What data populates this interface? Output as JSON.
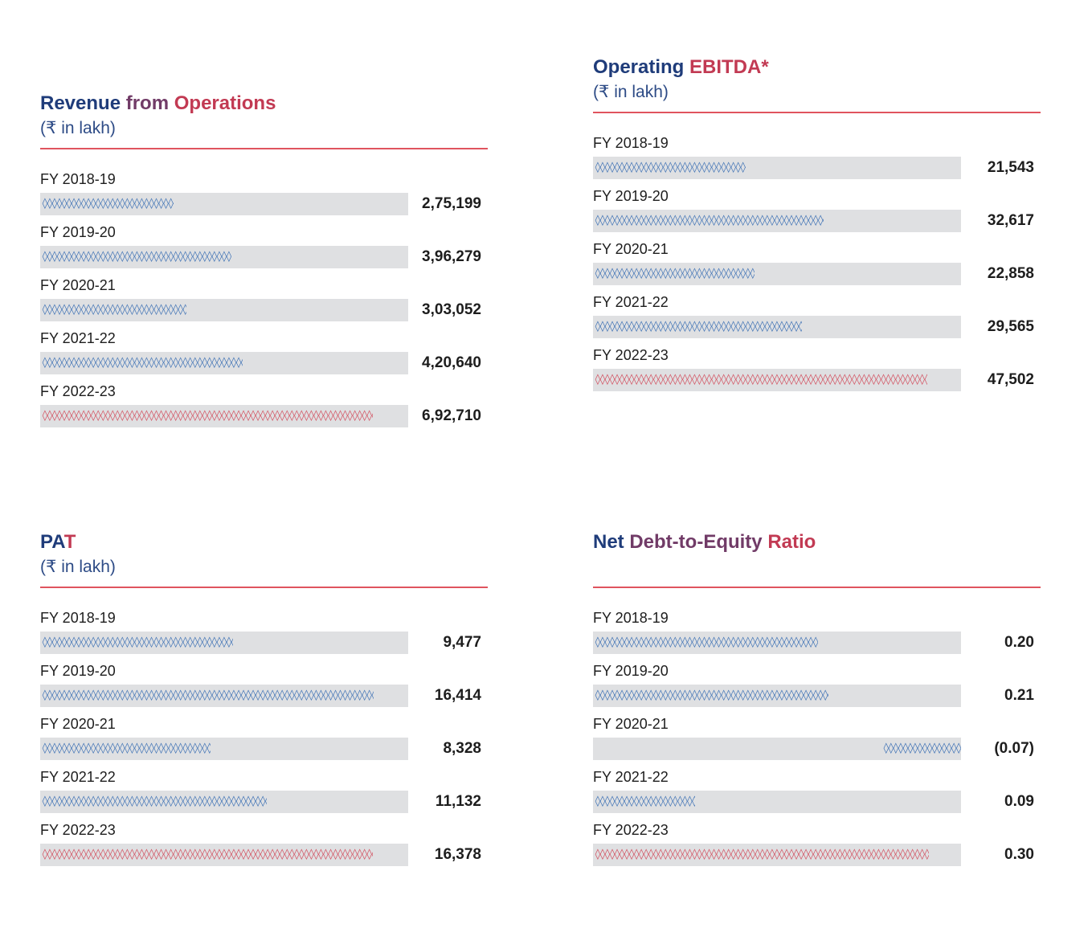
{
  "colors": {
    "title_start": "#1f3c7a",
    "title_end": "#c23a53",
    "subtitle": "#2d4b86",
    "rule": "#e0545e",
    "track": "#dfe0e2",
    "marker_default": "#3a6fb4",
    "marker_highlight": "#d24a5a"
  },
  "marker_glyph": "◊",
  "chart_data": [
    {
      "type": "bar",
      "orientation": "horizontal",
      "title_parts": [
        "Revenue",
        "from",
        "Operations"
      ],
      "subtitle": "(₹ in lakh)",
      "categories": [
        "FY 2018-19",
        "FY 2019-20",
        "FY 2020-21",
        "FY 2021-22",
        "FY 2022-23"
      ],
      "values": [
        275199,
        396279,
        303052,
        420640,
        692710
      ],
      "value_labels": [
        "2,75,199",
        "3,96,279",
        "3,03,052",
        "4,20,640",
        "6,92,710"
      ],
      "highlight_index": 4,
      "xlim": [
        0,
        770000
      ]
    },
    {
      "type": "bar",
      "orientation": "horizontal",
      "title_parts": [
        "Operating",
        "EBITDA*"
      ],
      "subtitle": "(₹ in lakh)",
      "categories": [
        "FY 2018-19",
        "FY 2019-20",
        "FY 2020-21",
        "FY 2021-22",
        "FY 2022-23"
      ],
      "values": [
        21543,
        32617,
        22858,
        29565,
        47502
      ],
      "value_labels": [
        "21,543",
        "32,617",
        "22,858",
        "29,565",
        "47,502"
      ],
      "highlight_index": 4,
      "xlim": [
        0,
        52500
      ]
    },
    {
      "type": "bar",
      "orientation": "horizontal",
      "title_parts": [
        "PA",
        "T"
      ],
      "subtitle": "(₹ in lakh)",
      "categories": [
        "FY 2018-19",
        "FY 2019-20",
        "FY 2020-21",
        "FY 2021-22",
        "FY 2022-23"
      ],
      "values": [
        9477,
        16414,
        8328,
        11132,
        16378
      ],
      "value_labels": [
        "9,477",
        "16,414",
        "8,328",
        "11,132",
        "16,378"
      ],
      "highlight_index": 4,
      "xlim": [
        0,
        18200
      ]
    },
    {
      "type": "bar",
      "orientation": "horizontal",
      "title_parts": [
        "Net",
        "Debt-to-Equity",
        "Ratio"
      ],
      "subtitle": "",
      "categories": [
        "FY 2018-19",
        "FY 2019-20",
        "FY 2020-21",
        "FY 2021-22",
        "FY 2022-23"
      ],
      "values": [
        0.2,
        0.21,
        -0.07,
        0.09,
        0.3
      ],
      "value_labels": [
        "0.20",
        "0.21",
        "(0.07)",
        "0.09",
        "0.30"
      ],
      "highlight_index": 4,
      "xlim": [
        0,
        0.33
      ]
    }
  ]
}
